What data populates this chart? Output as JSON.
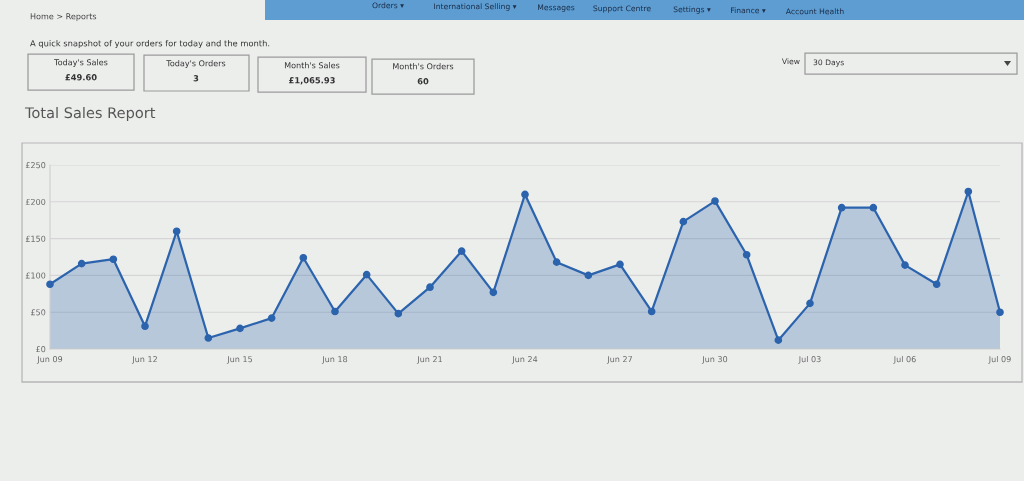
{
  "chart_data": {
    "type": "area",
    "title": "Total Sales Report",
    "subtitle": "A quick snapshot of your orders for today and the month.",
    "annotations": [
      "Home > Reports",
      "Today's Sales",
      "£49.60",
      "Today's Orders",
      "3",
      "Month's Sales",
      "£1,065.93",
      "Month's Orders",
      "60",
      "View",
      "30 Days",
      "Orders ▾",
      "International Selling ▾",
      "Messages",
      "Support Centre",
      "Settings ▾",
      "Finance ▾",
      "Account Health"
    ],
    "categories": [
      "Jun 09",
      null,
      null,
      "Jun 12",
      null,
      null,
      "Jun 15",
      null,
      null,
      "Jun 18",
      null,
      null,
      "Jun 21",
      null,
      null,
      "Jun 24",
      null,
      null,
      "Jun 27",
      null,
      null,
      "Jun 30",
      null,
      null,
      "Jul 03",
      null,
      null,
      "Jul 06",
      null,
      null,
      "Jul 09"
    ],
    "series": [
      {
        "color": "#2b63ad",
        "values": [
          88,
          116,
          122,
          31,
          160,
          15,
          28,
          42,
          124,
          51,
          101,
          48,
          84,
          133,
          77,
          210,
          118,
          100,
          115,
          51,
          173,
          201,
          128,
          12,
          62,
          192,
          192,
          114,
          88,
          214,
          50
        ]
      }
    ],
    "ylim": [
      0,
      250
    ],
    "yticks": [
      {
        "value": 0,
        "label": "£0"
      },
      {
        "value": 50,
        "label": "£50"
      },
      {
        "value": 100,
        "label": "£100"
      },
      {
        "value": 150,
        "label": "£150"
      },
      {
        "value": 200,
        "label": "£200"
      },
      {
        "value": 250,
        "label": "£250"
      }
    ],
    "grid": "y",
    "marker": "circle",
    "line_style": "solid"
  }
}
